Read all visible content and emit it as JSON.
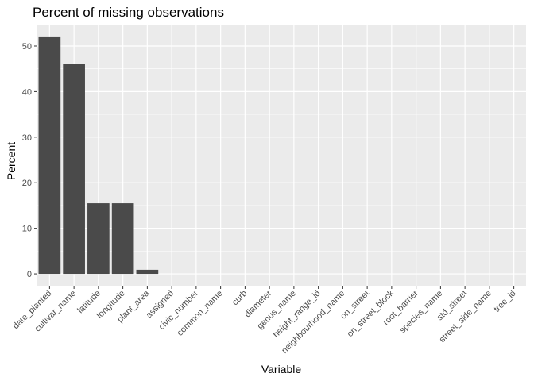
{
  "chart_data": {
    "type": "bar",
    "title": "Percent of missing observations",
    "xlabel": "Variable",
    "ylabel": "Percent",
    "categories": [
      "date_planted",
      "cultivar_name",
      "latitude",
      "longitude",
      "plant_area",
      "assigned",
      "civic_number",
      "common_name",
      "curb",
      "diameter",
      "genus_name",
      "height_range_id",
      "neighbourhood_name",
      "on_street",
      "on_street_block",
      "root_barrier",
      "species_name",
      "std_street",
      "street_side_name",
      "tree_id"
    ],
    "values": [
      52.1,
      46.0,
      15.5,
      15.5,
      0.9,
      0,
      0,
      0,
      0,
      0,
      0,
      0,
      0,
      0,
      0,
      0,
      0,
      0,
      0,
      0
    ],
    "ylim": [
      -2.6,
      54.7
    ],
    "yticks": [
      0,
      10,
      20,
      30,
      40,
      50
    ],
    "grid": true,
    "legend": "none",
    "colors": {
      "panel": "#ebebeb",
      "bar": "#4a4a4a",
      "grid_major": "#ffffff",
      "tick_text": "#4d4d4d"
    }
  }
}
